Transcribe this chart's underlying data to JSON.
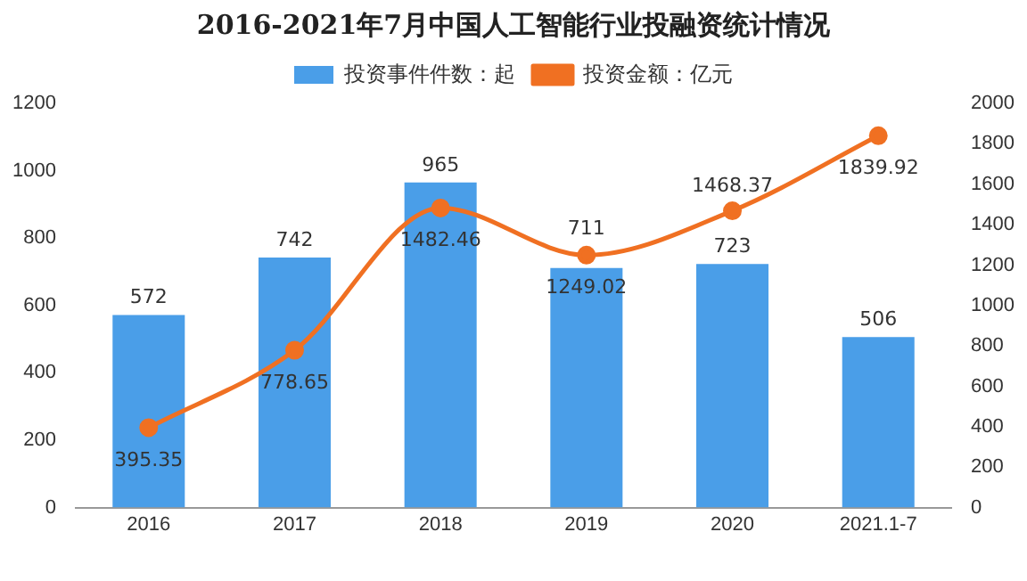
{
  "chart_data": {
    "type": "bar",
    "title": "2016-2021年7月中国人工智能行业投融资统计情况",
    "categories": [
      "2016",
      "2017",
      "2018",
      "2019",
      "2020",
      "2021.1-7"
    ],
    "series": [
      {
        "name": "投资事件件数：起",
        "color": "#4a9ee8",
        "values": [
          572,
          742,
          965,
          711,
          723,
          506
        ]
      },
      {
        "name": "投资金额：亿元",
        "type": "line",
        "axis": "y2",
        "color": "#f07022",
        "values": [
          395.35,
          778.65,
          1482.46,
          1249.02,
          1468.37,
          1839.92
        ]
      }
    ],
    "ylim": [
      0,
      1200
    ],
    "yticks": [
      0,
      200,
      400,
      600,
      800,
      1000,
      1200
    ],
    "y2lim": [
      0,
      2000
    ],
    "y2ticks": [
      0,
      200,
      400,
      600,
      800,
      1000,
      1200,
      1400,
      1600,
      1800,
      2000
    ],
    "grid": false,
    "legend": "top",
    "marker": "circle",
    "line_style": "solid",
    "data_labels": true
  }
}
